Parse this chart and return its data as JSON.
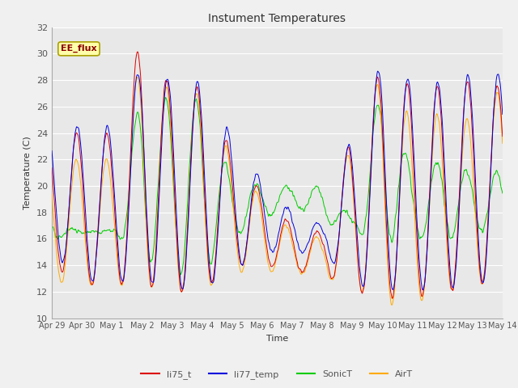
{
  "title": "Instument Temperatures",
  "xlabel": "Time",
  "ylabel": "Temperature (C)",
  "ylim": [
    10,
    32
  ],
  "yticks": [
    10,
    12,
    14,
    16,
    18,
    20,
    22,
    24,
    26,
    28,
    30,
    32
  ],
  "annotation": "EE_flux",
  "colors": {
    "li75_t": "#dd0000",
    "li77_temp": "#0000dd",
    "SonicT": "#00cc00",
    "AirT": "#ffaa00"
  },
  "legend_labels": [
    "li75_t",
    "li77_temp",
    "SonicT",
    "AirT"
  ],
  "plot_bg_color": "#e8e8e8",
  "fig_bg_color": "#f0f0f0",
  "grid_color": "#ffffff",
  "tick_label_color": "#555555",
  "axis_label_color": "#333333"
}
